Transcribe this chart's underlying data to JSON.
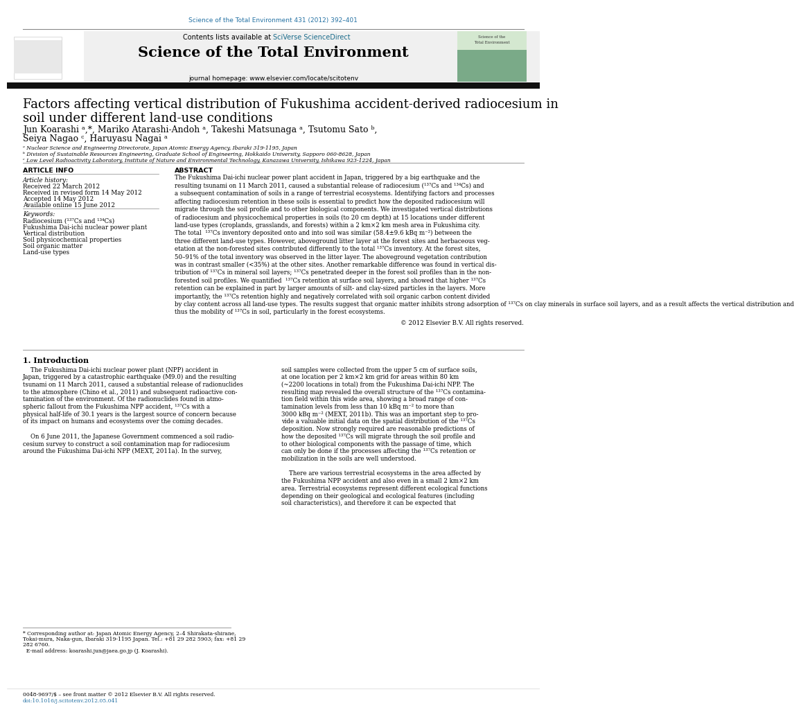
{
  "page_width": 9.92,
  "page_height": 13.23,
  "bg_color": "#ffffff",
  "top_citation": "Science of the Total Environment 431 (2012) 392–401",
  "contents_text": "Contents lists available at ",
  "sciverse_text": "SciVerse ScienceDirect",
  "journal_title": "Science of the Total Environment",
  "journal_homepage": "journal homepage: www.elsevier.com/locate/scitotenv",
  "paper_title_line1": "Factors affecting vertical distribution of Fukushima accident-derived radiocesium in",
  "paper_title_line2": "soil under different land-use conditions",
  "authors_line1": "Jun Koarashi ᵃ,*, Mariko Atarashi-Andoh ᵃ, Takeshi Matsunaga ᵃ, Tsutomu Sato ᵇ,",
  "authors_line2": "Seiya Nagao ᶜ, Haruyasu Nagai ᵃ",
  "affil_a": "ᵃ Nuclear Science and Engineering Directorate, Japan Atomic Energy Agency, Ibaraki 319-1195, Japan",
  "affil_b": "ᵇ Division of Sustainable Resources Engineering, Graduate School of Engineering, Hokkaido University, Sapporo 060-8628, Japan",
  "affil_c": "ᶜ Low Level Radioactivity Laboratory, Institute of Nature and Environmental Technology, Kanazawa University, Ishikawa 923-1224, Japan",
  "article_info_header": "ARTICLE INFO",
  "abstract_header": "ABSTRACT",
  "article_history_label": "Article history:",
  "received": "Received 22 March 2012",
  "received_revised": "Received in revised form 14 May 2012",
  "accepted": "Accepted 14 May 2012",
  "available": "Available online 15 June 2012",
  "keywords_label": "Keywords:",
  "kw1": "Radiocesium (¹³⁷Cs and ¹³⁴Cs)",
  "kw2": "Fukushima Dai-ichi nuclear power plant",
  "kw3": "Vertical distribution",
  "kw4": "Soil physicochemical properties",
  "kw5": "Soil organic matter",
  "kw6": "Land-use types",
  "abstract_text": "The Fukushima Dai-ichi nuclear power plant accident in Japan, triggered by a big earthquake and the\nresulting tsunami on 11 March 2011, caused a substantial release of radiocesium (¹³⁷Cs and ¹³⁴Cs) and\na subsequent contamination of soils in a range of terrestrial ecosystems. Identifying factors and processes\naffecting radiocesium retention in these soils is essential to predict how the deposited radiocesium will\nmigrate through the soil profile and to other biological components. We investigated vertical distributions\nof radiocesium and physicochemical properties in soils (to 20 cm depth) at 15 locations under different\nland-use types (croplands, grasslands, and forests) within a 2 km×2 km mesh area in Fukushima city.\nThe total  ¹³⁷Cs inventory deposited onto and into soil was similar (58.4±9.6 kBq m⁻²) between the\nthree different land-use types. However, aboveground litter layer at the forest sites and herbaceous veg-\netation at the non-forested sites contributed differently to the total ¹³⁷Cs inventory. At the forest sites,\n50–91% of the total inventory was observed in the litter layer. The aboveground vegetation contribution\nwas in contrast smaller (<35%) at the other sites. Another remarkable difference was found in vertical dis-\ntribution of ¹³⁷Cs in mineral soil layers; ¹³⁷Cs penetrated deeper in the forest soil profiles than in the non-\nforested soil profiles. We quantified  ¹³⁷Cs retention at surface soil layers, and showed that higher ¹³⁷Cs\nretention can be explained in part by larger amounts of silt- and clay-sized particles in the layers. More\nimportantly, the ¹³⁷Cs retention highly and negatively correlated with soil organic carbon content divided\nby clay content across all land-use types. The results suggest that organic matter inhibits strong adsorption of ¹³⁷Cs on clay minerals in surface soil layers, and as a result affects the vertical distribution and\nthus the mobility of ¹³⁷Cs in soil, particularly in the forest ecosystems.",
  "copyright": "© 2012 Elsevier B.V. All rights reserved.",
  "section1_header": "1. Introduction",
  "intro_col1_lines": [
    "    The Fukushima Dai-ichi nuclear power plant (NPP) accident in",
    "Japan, triggered by a catastrophic earthquake (M9.0) and the resulting",
    "tsunami on 11 March 2011, caused a substantial release of radionuclides",
    "to the atmosphere (Chino et al., 2011) and subsequent radioactive con-",
    "tamination of the environment. Of the radionuclides found in atmo-",
    "spheric fallout from the Fukushima NPP accident, ¹³⁷Cs with a",
    "physical half-life of 30.1 years is the largest source of concern because",
    "of its impact on humans and ecosystems over the coming decades.",
    "",
    "    On 6 June 2011, the Japanese Government commenced a soil radio-",
    "cesium survey to construct a soil contamination map for radiocesium",
    "around the Fukushima Dai-ichi NPP (MEXT, 2011a). In the survey,"
  ],
  "intro_col2_lines": [
    "soil samples were collected from the upper 5 cm of surface soils,",
    "at one location per 2 km×2 km grid for areas within 80 km",
    "(~2200 locations in total) from the Fukushima Dai-ichi NPP. The",
    "resulting map revealed the overall structure of the ¹³⁷Cs contamina-",
    "tion field within this wide area, showing a broad range of con-",
    "tamination levels from less than 10 kBq m⁻² to more than",
    "3000 kBq m⁻² (MEXT, 2011b). This was an important step to pro-",
    "vide a valuable initial data on the spatial distribution of the ¹³⁷Cs",
    "deposition. Now strongly required are reasonable predictions of",
    "how the deposited ¹³⁷Cs will migrate through the soil profile and",
    "to other biological components with the passage of time, which",
    "can only be done if the processes affecting the ¹³⁷Cs retention or",
    "mobilization in the soils are well understood.",
    "",
    "    There are various terrestrial ecosystems in the area affected by",
    "the Fukushima NPP accident and also even in a small 2 km×2 km",
    "area. Terrestrial ecosystems represent different ecological functions",
    "depending on their geological and ecological features (including",
    "soil characteristics), and therefore it can be expected that"
  ],
  "footnote_star": "* Corresponding author at: Japan Atomic Energy Agency, 2–4 Shirakata-shirane,",
  "footnote_star2": "Tokai-mura, Naka-gun, Ibaraki 319-1195 Japan. Tel.: +81 29 282 5903; fax: +81 29",
  "footnote_star3": "282 6760.",
  "footnote_email": "E-mail address: koarashi.jun@jaea.go.jp (J. Koarashi).",
  "footer1": "0048-9697/$ – see front matter © 2012 Elsevier B.V. All rights reserved.",
  "footer2": "doi:10.1016/j.scitotenv.2012.05.041",
  "link_color": "#2471a3",
  "sciverse_color": "#1a6b8a",
  "elsevier_orange": "#e87722",
  "header_gray": "#f0f0f0"
}
